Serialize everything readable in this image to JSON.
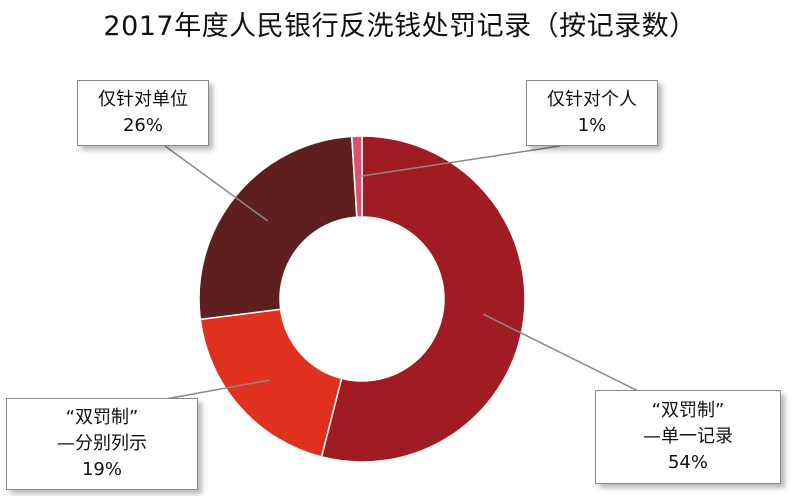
{
  "title": "2017年度人民银行反洗钱处罚记录（按记录数）",
  "chart_data": {
    "type": "pie",
    "donut": true,
    "title": "2017年度人民银行反洗钱处罚记录（按记录数）",
    "unit": "%",
    "slices": [
      {
        "lines": [
          "“双罚制”",
          "—单一记录"
        ],
        "value": 54,
        "value_label": "54%",
        "color": "#a11c22"
      },
      {
        "lines": [
          "“双罚制”",
          "—分别列示"
        ],
        "value": 19,
        "value_label": "19%",
        "color": "#e0301e"
      },
      {
        "lines": [
          "仅针对单位"
        ],
        "value": 26,
        "value_label": "26%",
        "color": "#5f1f1e"
      },
      {
        "lines": [
          "仅针对个人"
        ],
        "value": 1,
        "value_label": "1%",
        "color": "#d9536e"
      }
    ]
  }
}
